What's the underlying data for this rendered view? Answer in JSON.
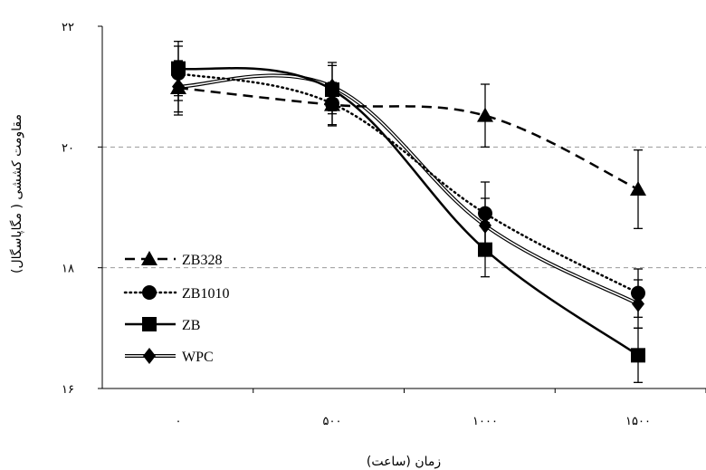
{
  "chart_data": {
    "type": "line",
    "xlabel": "زمان (ساعت)",
    "ylabel": "مقاومت کششی ( مگاپاسگال)",
    "x": [
      0,
      500,
      1000,
      1500
    ],
    "xtick_labels": [
      "۰",
      "۵۰۰",
      "۱۰۰۰",
      "۱۵۰۰"
    ],
    "ylim": [
      16,
      22
    ],
    "yticks": [
      16,
      18,
      20,
      22
    ],
    "ytick_labels": [
      "۱۶",
      "۱۸",
      "۲۰",
      "۲۲"
    ],
    "grid": "horizontal dashed at 18 and 20",
    "legend_position": "left",
    "series": [
      {
        "name": "ZB328",
        "values": [
          20.98,
          20.7,
          20.52,
          19.3
        ],
        "errors": [
          0.45,
          0.35,
          0.52,
          0.65
        ],
        "marker": "triangle",
        "line": "dashed"
      },
      {
        "name": "ZB1010",
        "values": [
          21.22,
          20.72,
          18.9,
          17.58
        ],
        "errors": [
          0.45,
          0.35,
          0.52,
          0.4
        ],
        "marker": "circle",
        "line": "dotted"
      },
      {
        "name": "ZB",
        "values": [
          21.3,
          20.95,
          18.3,
          16.55
        ],
        "errors": [
          0.45,
          0.4,
          0.45,
          0.45
        ],
        "marker": "square",
        "line": "solid"
      },
      {
        "name": "WPC",
        "values": [
          21.0,
          21.0,
          18.7,
          17.4
        ],
        "errors": [
          0.42,
          0.4,
          0.45,
          0.4
        ],
        "marker": "diamond",
        "line": "double"
      }
    ]
  }
}
